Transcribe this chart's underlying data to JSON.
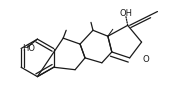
{
  "bg_color": "#ffffff",
  "line_color": "#1a1a1a",
  "lw": 0.9,
  "OH_label": "OH",
  "O_label": "O",
  "HO_label": "HO",
  "figw": 1.77,
  "figh": 0.99,
  "dpi": 100
}
